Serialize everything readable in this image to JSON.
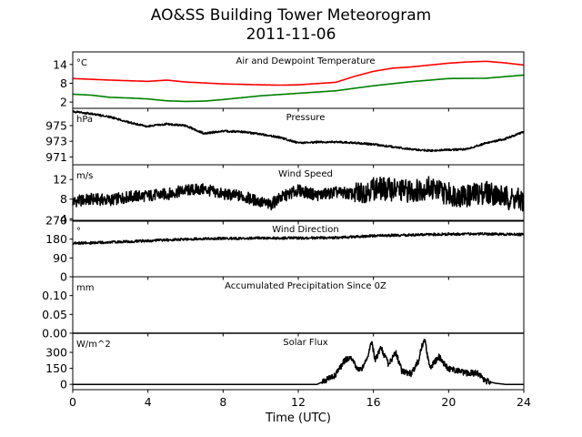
{
  "title": "AO&SS Building Tower Meteorogram",
  "subtitle": "2011-11-06",
  "xlabel": "Time (UTC)",
  "colors": {
    "temperature": "#ff0000",
    "dewpoint": "#008000",
    "default": "#000000"
  },
  "chart_data": [
    {
      "type": "line",
      "title": "Air and Dewpoint Temperature",
      "unit": "°C",
      "xlim": [
        0,
        24
      ],
      "ylim": [
        0,
        18
      ],
      "yticks": [
        2,
        8,
        14
      ],
      "xticks": [
        0,
        4,
        8,
        12,
        16,
        20,
        24
      ],
      "series": [
        {
          "color": "#ff0000",
          "x": [
            0,
            2,
            4,
            5,
            6,
            8,
            10,
            11,
            12,
            14,
            15,
            16,
            17,
            18,
            19,
            20,
            21,
            22,
            23,
            24
          ],
          "values": [
            9.5,
            9.0,
            8.6,
            9.0,
            8.4,
            7.8,
            7.5,
            7.4,
            7.5,
            8.3,
            10.2,
            11.8,
            12.8,
            13.2,
            13.8,
            14.4,
            14.8,
            15.0,
            14.5,
            13.8
          ]
        },
        {
          "color": "#008000",
          "x": [
            0,
            1,
            2,
            3,
            4,
            5,
            6,
            7,
            8,
            10,
            12,
            14,
            16,
            18,
            20,
            22,
            24
          ],
          "values": [
            4.5,
            4.2,
            3.5,
            3.3,
            3.0,
            2.4,
            2.2,
            2.3,
            2.8,
            4.0,
            4.8,
            5.6,
            7.2,
            8.5,
            9.5,
            9.6,
            10.6
          ]
        }
      ]
    },
    {
      "type": "line",
      "title": "Pressure",
      "unit": "hPa",
      "xlim": [
        0,
        24
      ],
      "ylim": [
        970.0,
        977.2
      ],
      "yticks": [
        971,
        973,
        975
      ],
      "series": [
        {
          "color": "#000000",
          "x": [
            0,
            1,
            2,
            3,
            4,
            5,
            6,
            7,
            8,
            9,
            10,
            11,
            12,
            13,
            14,
            15,
            16,
            17,
            18,
            19,
            20,
            21,
            22,
            23,
            24
          ],
          "values": [
            976.8,
            976.5,
            976.1,
            975.4,
            974.9,
            975.2,
            975.0,
            974.0,
            974.3,
            974.2,
            973.9,
            973.5,
            972.8,
            972.9,
            972.9,
            972.8,
            972.6,
            972.3,
            972.0,
            971.8,
            971.9,
            972.0,
            972.8,
            973.3,
            974.2
          ]
        }
      ]
    },
    {
      "type": "line",
      "title": "Wind Speed",
      "unit": "m/s",
      "xlim": [
        0,
        24
      ],
      "ylim": [
        3.5,
        15.0
      ],
      "yticks": [
        4,
        8,
        12
      ],
      "series": [
        {
          "color": "#000000",
          "x": [
            0,
            1,
            2,
            3,
            4,
            5,
            6,
            7,
            8,
            9,
            10,
            10.5,
            11,
            12,
            13,
            14,
            15,
            16,
            17,
            18,
            19,
            20,
            21,
            22,
            23,
            24
          ],
          "values": [
            7.5,
            8.0,
            7.8,
            8.5,
            8.7,
            9.0,
            9.8,
            10.0,
            9.0,
            8.6,
            7.4,
            6.8,
            8.2,
            9.8,
            8.8,
            9.4,
            9.0,
            10.2,
            10.0,
            9.6,
            10.4,
            9.0,
            8.6,
            9.5,
            8.4,
            7.6
          ]
        }
      ]
    },
    {
      "type": "line",
      "title": "Wind Direction",
      "unit": "°",
      "xlim": [
        0,
        24
      ],
      "ylim": [
        0,
        270
      ],
      "yticks": [
        0,
        90,
        180,
        270
      ],
      "series": [
        {
          "color": "#000000",
          "x": [
            0,
            2,
            4,
            6,
            8,
            10,
            12,
            14,
            16,
            18,
            20,
            22,
            24
          ],
          "values": [
            160,
            165,
            172,
            180,
            183,
            185,
            185,
            187,
            196,
            200,
            204,
            205,
            202
          ]
        }
      ]
    },
    {
      "type": "line",
      "title": "Accumulated Precipitation Since 0Z",
      "unit": "mm",
      "xlim": [
        0,
        24
      ],
      "ylim": [
        0,
        0.15
      ],
      "yticks": [
        0.0,
        0.05,
        0.1
      ],
      "series": [
        {
          "color": "#000000",
          "x": [
            0,
            24
          ],
          "values": [
            0,
            0
          ]
        }
      ]
    },
    {
      "type": "line",
      "title": "Solar Flux",
      "unit": "W/m^2",
      "xlim": [
        0,
        24
      ],
      "ylim": [
        -50,
        480
      ],
      "yticks": [
        0,
        150,
        300
      ],
      "series": [
        {
          "color": "#000000",
          "x": [
            0,
            13.0,
            13.5,
            14.0,
            14.5,
            14.8,
            15.2,
            15.5,
            15.9,
            16.1,
            16.4,
            16.8,
            17.2,
            17.5,
            18.0,
            18.4,
            18.7,
            19.0,
            19.5,
            20.0,
            20.5,
            21.0,
            21.5,
            22.0,
            22.5,
            23.0,
            24
          ],
          "values": [
            0,
            0,
            40,
            90,
            230,
            260,
            140,
            170,
            390,
            230,
            340,
            190,
            300,
            130,
            100,
            220,
            440,
            160,
            260,
            140,
            130,
            100,
            110,
            30,
            10,
            0,
            0
          ]
        }
      ]
    }
  ]
}
